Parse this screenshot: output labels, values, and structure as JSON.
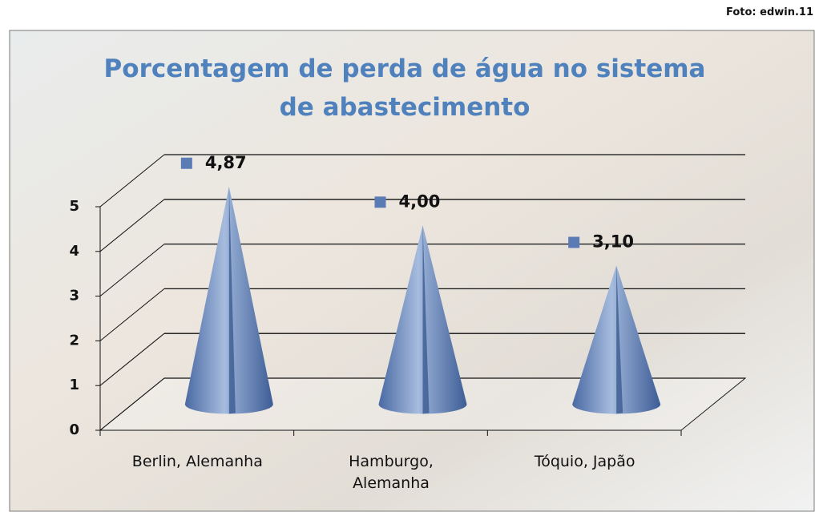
{
  "credit": "Foto: edwin.11",
  "chart_data": {
    "type": "cone",
    "title": "Porcentagem de perda de água no sistema de abastecimento",
    "categories": [
      "Berlin, Alemanha",
      "Hamburgo, Alemanha",
      "Tóquio, Japão"
    ],
    "values": [
      4.87,
      4.0,
      3.1
    ],
    "value_labels": [
      "4,87",
      "4,00",
      "3,10"
    ],
    "color": "#5b7bb5",
    "ylim": [
      0,
      5
    ],
    "yticks": [
      0,
      1,
      2,
      3,
      4,
      5
    ],
    "grid": true
  }
}
